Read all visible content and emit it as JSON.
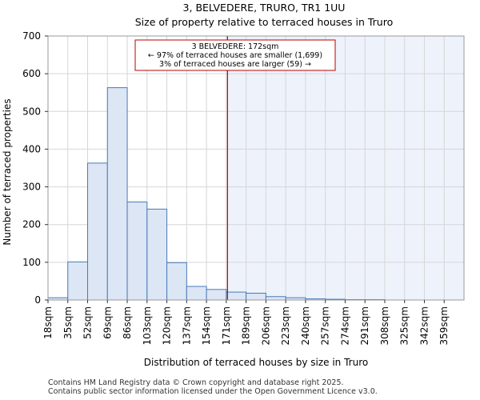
{
  "chart_data": {
    "type": "bar",
    "title": "3, BELVEDERE, TRURO, TR1 1UU",
    "subtitle": "Size of property relative to terraced houses in Truro",
    "xlabel": "Distribution of terraced houses by size in Truro",
    "ylabel": "Number of terraced properties",
    "categories": [
      "18sqm",
      "35sqm",
      "52sqm",
      "69sqm",
      "86sqm",
      "103sqm",
      "120sqm",
      "137sqm",
      "154sqm",
      "171sqm",
      "189sqm",
      "206sqm",
      "223sqm",
      "240sqm",
      "257sqm",
      "274sqm",
      "291sqm",
      "308sqm",
      "325sqm",
      "342sqm",
      "359sqm"
    ],
    "values": [
      6,
      101,
      363,
      563,
      260,
      241,
      99,
      36,
      28,
      21,
      18,
      9,
      6,
      3,
      2,
      1,
      1,
      0,
      0,
      0,
      0
    ],
    "ylim": [
      0,
      700
    ],
    "yticks": [
      0,
      100,
      200,
      300,
      400,
      500,
      600,
      700
    ],
    "marker": {
      "value_sqm": 172,
      "bin_position": 9.06,
      "color": "#bb0000",
      "annotation": [
        "3 BELVEDERE: 172sqm",
        "← 97% of terraced houses are smaller (1,699)",
        "3% of terraced houses are larger (59) →"
      ]
    },
    "colors": {
      "bar_fill": "#dce6f4",
      "bar_stroke": "#4a7ab8",
      "highlight_bg": "#eef2fb",
      "grid": "#d6d6d6"
    }
  },
  "footer": {
    "line1": "Contains HM Land Registry data © Crown copyright and database right 2025.",
    "line2": "Contains public sector information licensed under the Open Government Licence v3.0."
  }
}
